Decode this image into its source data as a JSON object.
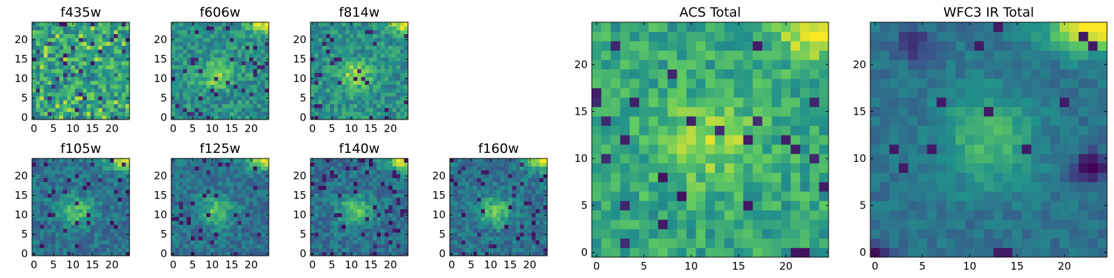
{
  "colormap": [
    "#440154",
    "#3b528b",
    "#21918c",
    "#5ec962",
    "#fde725"
  ],
  "chart_data": [
    {
      "type": "heatmap",
      "title": "f435w",
      "seed": 11,
      "grid_size": 25,
      "style": "noise",
      "xticks": [
        0,
        5,
        10,
        15,
        20
      ],
      "yticks": [
        0,
        5,
        10,
        15,
        20
      ],
      "xticklabels": [
        "0",
        "5",
        "10",
        "15",
        "20"
      ],
      "yticklabels": [
        "0",
        "5",
        "10",
        "15",
        "20"
      ]
    },
    {
      "type": "heatmap",
      "title": "f606w",
      "seed": 23,
      "grid_size": 25,
      "style": "optical",
      "xticks": [
        0,
        5,
        10,
        15,
        20
      ],
      "yticks": [
        0,
        5,
        10,
        15,
        20
      ],
      "xticklabels": [
        "0",
        "5",
        "10",
        "15",
        "20"
      ],
      "yticklabels": [
        "0",
        "5",
        "10",
        "15",
        "20"
      ]
    },
    {
      "type": "heatmap",
      "title": "f814w",
      "seed": 37,
      "grid_size": 25,
      "style": "optical",
      "xticks": [
        0,
        5,
        10,
        15,
        20
      ],
      "yticks": [
        0,
        5,
        10,
        15,
        20
      ],
      "xticklabels": [
        "0",
        "5",
        "10",
        "15",
        "20"
      ],
      "yticklabels": [
        "0",
        "5",
        "10",
        "15",
        "20"
      ]
    },
    {
      "type": "heatmap",
      "title": "f105w",
      "seed": 41,
      "grid_size": 25,
      "style": "ir",
      "xticks": [
        0,
        5,
        10,
        15,
        20
      ],
      "yticks": [
        0,
        5,
        10,
        15,
        20
      ],
      "xticklabels": [
        "0",
        "5",
        "10",
        "15",
        "20"
      ],
      "yticklabels": [
        "0",
        "5",
        "10",
        "15",
        "20"
      ]
    },
    {
      "type": "heatmap",
      "title": "f125w",
      "seed": 53,
      "grid_size": 25,
      "style": "ir",
      "xticks": [
        0,
        5,
        10,
        15,
        20
      ],
      "yticks": [
        0,
        5,
        10,
        15,
        20
      ],
      "xticklabels": [
        "0",
        "5",
        "10",
        "15",
        "20"
      ],
      "yticklabels": [
        "0",
        "5",
        "10",
        "15",
        "20"
      ]
    },
    {
      "type": "heatmap",
      "title": "f140w",
      "seed": 67,
      "grid_size": 25,
      "style": "ir",
      "xticks": [
        0,
        5,
        10,
        15,
        20
      ],
      "yticks": [
        0,
        5,
        10,
        15,
        20
      ],
      "xticklabels": [
        "0",
        "5",
        "10",
        "15",
        "20"
      ],
      "yticklabels": [
        "0",
        "5",
        "10",
        "15",
        "20"
      ]
    },
    {
      "type": "heatmap",
      "title": "f160w",
      "seed": 79,
      "grid_size": 25,
      "style": "ir",
      "xticks": [
        0,
        5,
        10,
        15,
        20
      ],
      "yticks": [
        0,
        5,
        10,
        15,
        20
      ],
      "xticklabels": [
        "0",
        "5",
        "10",
        "15",
        "20"
      ],
      "yticklabels": [
        "0",
        "5",
        "10",
        "15",
        "20"
      ]
    },
    {
      "type": "heatmap",
      "title": "ACS Total",
      "seed": 83,
      "grid_size": 25,
      "style": "acs",
      "xticks": [
        0,
        5,
        10,
        15,
        20
      ],
      "yticks": [
        0,
        5,
        10,
        15,
        20
      ],
      "xticklabels": [
        "0",
        "5",
        "10",
        "15",
        "20"
      ],
      "yticklabels": [
        "0",
        "5",
        "10",
        "15",
        "20"
      ]
    },
    {
      "type": "heatmap",
      "title": "WFC3 IR Total",
      "seed": 97,
      "grid_size": 25,
      "style": "wfc3",
      "xticks": [
        0,
        5,
        10,
        15,
        20
      ],
      "yticks": [
        0,
        5,
        10,
        15,
        20
      ],
      "xticklabels": [
        "0",
        "5",
        "10",
        "15",
        "20"
      ],
      "yticklabels": [
        "0",
        "5",
        "10",
        "15",
        "20"
      ]
    }
  ]
}
